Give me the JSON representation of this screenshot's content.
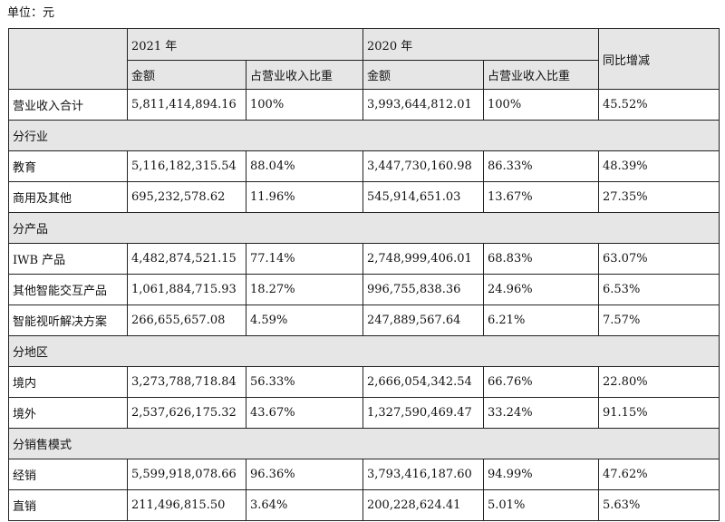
{
  "unit_label": "单位：元",
  "header": {
    "year_2021": "2021 年",
    "year_2020": "2020 年",
    "amount": "金额",
    "share": "占营业收入比重",
    "yoy": "同比增减"
  },
  "total": {
    "label": "营业收入合计",
    "amount_2021": "5,811,414,894.16",
    "share_2021": "100%",
    "amount_2020": "3,993,644,812.01",
    "share_2020": "100%",
    "yoy": "45.52%"
  },
  "sections": [
    {
      "title": "分行业",
      "rows": [
        {
          "label": "教育",
          "amount_2021": "5,116,182,315.54",
          "share_2021": "88.04%",
          "amount_2020": "3,447,730,160.98",
          "share_2020": "86.33%",
          "yoy": "48.39%"
        },
        {
          "label": "商用及其他",
          "amount_2021": "695,232,578.62",
          "share_2021": "11.96%",
          "amount_2020": "545,914,651.03",
          "share_2020": "13.67%",
          "yoy": "27.35%"
        }
      ]
    },
    {
      "title": "分产品",
      "rows": [
        {
          "label": "IWB 产品",
          "amount_2021": "4,482,874,521.15",
          "share_2021": "77.14%",
          "amount_2020": "2,748,999,406.01",
          "share_2020": "68.83%",
          "yoy": "63.07%"
        },
        {
          "label": "其他智能交互产品",
          "amount_2021": "1,061,884,715.93",
          "share_2021": "18.27%",
          "amount_2020": "996,755,838.36",
          "share_2020": "24.96%",
          "yoy": "6.53%"
        },
        {
          "label": "智能视听解决方案",
          "amount_2021": "266,655,657.08",
          "share_2021": "4.59%",
          "amount_2020": "247,889,567.64",
          "share_2020": "6.21%",
          "yoy": "7.57%"
        }
      ]
    },
    {
      "title": "分地区",
      "rows": [
        {
          "label": "境内",
          "amount_2021": "3,273,788,718.84",
          "share_2021": "56.33%",
          "amount_2020": "2,666,054,342.54",
          "share_2020": "66.76%",
          "yoy": "22.80%"
        },
        {
          "label": "境外",
          "amount_2021": "2,537,626,175.32",
          "share_2021": "43.67%",
          "amount_2020": "1,327,590,469.47",
          "share_2020": "33.24%",
          "yoy": "91.15%"
        }
      ]
    },
    {
      "title": "分销售模式",
      "rows": [
        {
          "label": "经销",
          "amount_2021": "5,599,918,078.66",
          "share_2021": "96.36%",
          "amount_2020": "3,793,416,187.60",
          "share_2020": "94.99%",
          "yoy": "47.62%"
        },
        {
          "label": "直销",
          "amount_2021": "211,496,815.50",
          "share_2021": "3.64%",
          "amount_2020": "200,228,624.41",
          "share_2020": "5.01%",
          "yoy": "5.63%"
        }
      ]
    }
  ]
}
